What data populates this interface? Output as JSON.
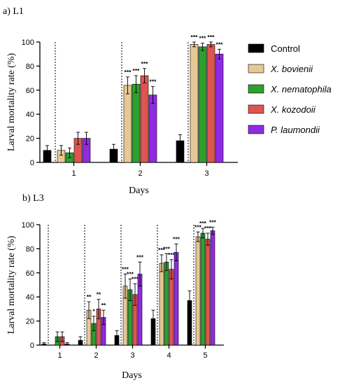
{
  "legend": [
    {
      "name": "Control",
      "color": "#000000",
      "italic": false
    },
    {
      "name": "X. bovienii",
      "color": "#e6c896",
      "italic": true
    },
    {
      "name": "X. nematophila",
      "color": "#2ea02e",
      "italic": true
    },
    {
      "name": "X. kozodoii",
      "color": "#e05450",
      "italic": true
    },
    {
      "name": "P. laumondii",
      "color": "#8f2be2",
      "italic": true
    }
  ],
  "chart_data": [
    {
      "type": "bar",
      "title": "a) L1",
      "xlabel": "Days",
      "ylabel": "Larval mortality rate (%)",
      "ylim": [
        0,
        100
      ],
      "yticks": [
        "0",
        "20",
        "40",
        "60",
        "80",
        "100"
      ],
      "categories": [
        "1",
        "2",
        "3"
      ],
      "series": [
        {
          "name": "Control",
          "values": [
            10,
            11,
            18
          ],
          "errors": [
            4,
            4,
            5
          ],
          "sig": [
            "",
            "",
            ""
          ]
        },
        {
          "name": "X. bovienii",
          "values": [
            10,
            64,
            98
          ],
          "errors": [
            4,
            7,
            2
          ],
          "sig": [
            "",
            "***",
            "***"
          ]
        },
        {
          "name": "X. nematophila",
          "values": [
            8,
            65,
            96
          ],
          "errors": [
            4,
            7,
            3
          ],
          "sig": [
            "",
            "***",
            "***"
          ]
        },
        {
          "name": "X. kozodoii",
          "values": [
            20,
            72,
            98
          ],
          "errors": [
            5,
            6,
            2
          ],
          "sig": [
            "",
            "***",
            "***"
          ]
        },
        {
          "name": "P. laumondii",
          "values": [
            20,
            56,
            90
          ],
          "errors": [
            5,
            7,
            4
          ],
          "sig": [
            "",
            "***",
            "***"
          ]
        }
      ]
    },
    {
      "type": "bar",
      "title": "b) L3",
      "xlabel": "Days",
      "ylabel": "Larval mortality rate (%)",
      "ylim": [
        0,
        100
      ],
      "yticks": [
        "0",
        "20",
        "40",
        "60",
        "80",
        "100"
      ],
      "categories": [
        "1",
        "2",
        "3",
        "4",
        "5"
      ],
      "series": [
        {
          "name": "Control",
          "values": [
            1,
            4,
            8,
            22,
            37
          ],
          "errors": [
            1,
            3,
            4,
            7,
            8
          ],
          "sig": [
            "",
            "",
            "",
            "",
            ""
          ]
        },
        {
          "name": "X. bovienii",
          "values": [
            0,
            29,
            49,
            68,
            90
          ],
          "errors": [
            0,
            7,
            10,
            7,
            4
          ],
          "sig": [
            "",
            "**",
            "***",
            "***",
            "***"
          ]
        },
        {
          "name": "X. nematophila",
          "values": [
            7,
            18,
            46,
            69,
            93
          ],
          "errors": [
            4,
            6,
            9,
            7,
            4
          ],
          "sig": [
            "",
            "*",
            "***",
            "***",
            "***"
          ]
        },
        {
          "name": "X. kozodoii",
          "values": [
            7,
            30,
            42,
            63,
            88
          ],
          "errors": [
            4,
            8,
            9,
            8,
            5
          ],
          "sig": [
            "",
            "**",
            "***",
            "***",
            "***"
          ]
        },
        {
          "name": "P. laumondii",
          "values": [
            1,
            23,
            59,
            77,
            95
          ],
          "errors": [
            1,
            6,
            10,
            7,
            3
          ],
          "sig": [
            "",
            "**",
            "***",
            "***",
            "***"
          ]
        }
      ]
    }
  ]
}
